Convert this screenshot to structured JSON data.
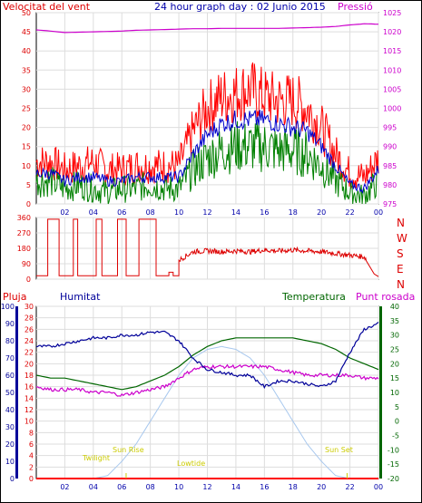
{
  "header": {
    "left_label": "Velocitat del vent",
    "title": "24 hour graph day : 02 Junio 2015",
    "right_label": "Pressió"
  },
  "compass_letters": [
    "N",
    "W",
    "S",
    "E",
    "N"
  ],
  "bottom_labels": {
    "rain": "Pluja",
    "humidity": "Humitat",
    "temperature": "Temperatura",
    "dewpoint": "Punt rosada"
  },
  "solar_labels": {
    "twilight": "Twilight",
    "sunrise": "Sun Rise",
    "lowtide": "Lowtide",
    "sunset": "Sun Set"
  },
  "colors": {
    "wind_avg": "#0000cc",
    "wind_gust": "#ff0000",
    "wind_min": "#008000",
    "pressure": "#cc00cc",
    "direction": "#dd0000",
    "humidity": "#000099",
    "temperature": "#006600",
    "dewpoint": "#cc00cc",
    "solar": "#a8c8ee",
    "rain": "#ff0000",
    "label_yellow": "#cccc00",
    "frame": "#000000",
    "title_blue": "#0000aa"
  },
  "chart_data": [
    {
      "type": "line",
      "x_ticks": [
        "02",
        "04",
        "06",
        "08",
        "10",
        "12",
        "14",
        "16",
        "18",
        "20",
        "22",
        "00"
      ],
      "left_axis": {
        "ticks": [
          0,
          5,
          10,
          15,
          20,
          25,
          30,
          35,
          40,
          45,
          50
        ],
        "ylim": [
          0,
          50
        ]
      },
      "right_axis": {
        "ticks": [
          975,
          980,
          985,
          990,
          995,
          1000,
          1005,
          1010,
          1015,
          1020,
          1025
        ],
        "ylim": [
          975,
          1025
        ]
      },
      "x": [
        0,
        1,
        2,
        3,
        4,
        5,
        6,
        7,
        8,
        9,
        10,
        11,
        12,
        13,
        14,
        15,
        16,
        17,
        18,
        19,
        20,
        21,
        22,
        23,
        24
      ],
      "series": [
        {
          "key": "gust",
          "values": [
            11,
            11,
            9,
            10,
            11,
            9,
            9,
            10,
            10,
            10,
            10,
            19,
            25,
            28,
            29,
            30,
            28,
            27,
            27,
            25,
            20,
            13,
            8,
            7,
            12
          ]
        },
        {
          "key": "avg",
          "values": [
            8,
            8,
            6,
            7,
            7,
            6,
            6,
            7,
            7,
            7,
            7,
            13,
            18,
            21,
            22,
            22,
            22,
            21,
            20,
            19,
            15,
            10,
            5,
            4,
            9
          ]
        },
        {
          "key": "min",
          "values": [
            6,
            6,
            4,
            5,
            4,
            3,
            4,
            4,
            5,
            4,
            4,
            9,
            12,
            14,
            15,
            15,
            15,
            14,
            14,
            13,
            10,
            6,
            3,
            2,
            6
          ]
        },
        {
          "key": "pressure",
          "axis": "right",
          "values": [
            1020.5,
            1020.2,
            1019.8,
            1019.9,
            1020.0,
            1020.1,
            1020.2,
            1020.4,
            1020.5,
            1020.6,
            1020.7,
            1020.8,
            1020.8,
            1020.9,
            1020.9,
            1020.9,
            1020.9,
            1020.9,
            1021.0,
            1021.1,
            1021.2,
            1021.4,
            1021.8,
            1022.1,
            1022.0
          ]
        }
      ]
    },
    {
      "type": "line",
      "x_ticks": [
        "02",
        "04",
        "06",
        "08",
        "10",
        "12",
        "14",
        "16",
        "18",
        "20",
        "22",
        "00"
      ],
      "left_axis": {
        "ticks": [
          0,
          90,
          180,
          270,
          360
        ],
        "ylim": [
          0,
          360
        ]
      },
      "x": [
        0,
        1,
        2,
        3,
        4,
        5,
        6,
        7,
        8,
        9,
        10,
        11,
        12,
        13,
        14,
        15,
        16,
        17,
        18,
        19,
        20,
        21,
        22,
        23,
        24
      ],
      "series": [
        {
          "key": "direction",
          "values": [
            20,
            20,
            350,
            20,
            350,
            20,
            350,
            20,
            350,
            20,
            110,
            160,
            165,
            160,
            165,
            160,
            170,
            165,
            170,
            165,
            160,
            150,
            140,
            130,
            20
          ]
        }
      ]
    },
    {
      "type": "line",
      "x_ticks": [
        "02",
        "04",
        "06",
        "08",
        "10",
        "12",
        "14",
        "16",
        "18",
        "20",
        "22",
        "00"
      ],
      "axes": {
        "rain": {
          "ticks": [
            0,
            2,
            4,
            6,
            8,
            10,
            12,
            14,
            16,
            18,
            20,
            22,
            24,
            26,
            28,
            30
          ],
          "ylim": [
            0,
            30
          ]
        },
        "humidity": {
          "ticks": [
            0,
            10,
            20,
            30,
            40,
            50,
            60,
            70,
            80,
            90,
            100
          ],
          "ylim": [
            0,
            100
          ]
        },
        "temperature": {
          "ticks": [
            -20,
            -15,
            -10,
            -5,
            0,
            5,
            10,
            15,
            20,
            25,
            30,
            35,
            40
          ],
          "ylim": [
            -20,
            40
          ]
        }
      },
      "x": [
        0,
        1,
        2,
        3,
        4,
        5,
        6,
        7,
        8,
        9,
        10,
        11,
        12,
        13,
        14,
        15,
        16,
        17,
        18,
        19,
        20,
        21,
        22,
        23,
        24
      ],
      "series": [
        {
          "key": "humidity",
          "axis": "rain",
          "values": [
            23,
            23,
            23.5,
            24,
            24.5,
            24.5,
            25,
            25,
            25.5,
            25.5,
            24,
            21,
            19,
            18.5,
            18,
            18,
            16,
            17,
            17,
            16.5,
            16,
            17,
            22,
            26,
            27
          ]
        },
        {
          "key": "temperature",
          "axis": "rain",
          "values": [
            18,
            17.5,
            17.5,
            17,
            16.5,
            16,
            15.5,
            16,
            17,
            18,
            19.5,
            21.5,
            23,
            24,
            24.5,
            24.5,
            24.5,
            24.5,
            24.5,
            24,
            23.5,
            22.5,
            21,
            20,
            19
          ]
        },
        {
          "key": "dewpoint",
          "axis": "rain",
          "values": [
            16,
            15.5,
            15.5,
            15.5,
            15,
            15,
            14.5,
            15,
            15.5,
            16,
            17.5,
            19,
            19.5,
            19.5,
            19.5,
            19.5,
            19.5,
            19,
            18.5,
            18,
            18,
            18,
            18,
            17.5,
            17.5
          ]
        },
        {
          "key": "solar",
          "axis": "rain",
          "values": [
            0,
            0,
            0,
            0,
            0,
            0.5,
            3,
            6,
            10,
            14,
            18,
            21,
            22.5,
            23,
            22.5,
            21,
            18,
            14,
            10,
            6,
            3,
            0.5,
            0,
            0,
            0
          ]
        },
        {
          "key": "rain",
          "axis": "rain",
          "values": [
            0,
            0,
            0,
            0,
            0,
            0,
            0,
            0,
            0,
            0,
            0,
            0,
            0,
            0,
            0,
            0,
            0,
            0,
            0,
            0,
            0,
            0,
            0,
            0,
            0
          ]
        }
      ]
    }
  ]
}
